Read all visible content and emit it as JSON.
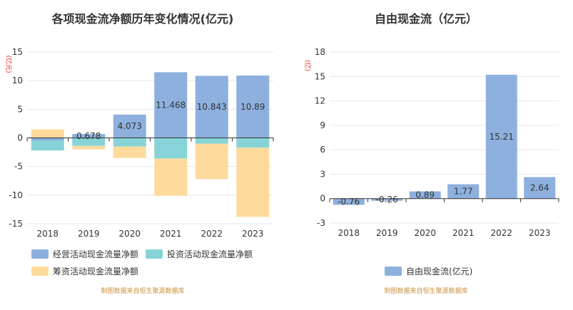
{
  "colors": {
    "operating": "#8eb0de",
    "investing": "#86d4d8",
    "financing": "#fedb9c",
    "free_cf": "#8eb0de",
    "source_text": "#c9913a",
    "unit_text": "#e8261f"
  },
  "chart_data": [
    {
      "type": "bar",
      "title": "各项现金流净额历年变化情况(亿元)",
      "ylabel": "(亿元)",
      "ylim": [
        -15,
        15
      ],
      "yticks": [
        15,
        10,
        5,
        0,
        -5,
        -10,
        -15
      ],
      "categories": [
        "2018",
        "2019",
        "2020",
        "2021",
        "2022",
        "2023"
      ],
      "stacked": true,
      "grid": true,
      "legend_position": "bottom",
      "series": [
        {
          "name": "经营活动现金流量净额",
          "color_key": "operating",
          "values": [
            -0.5,
            0.678,
            4.073,
            11.468,
            10.843,
            10.89
          ],
          "labels": [
            "",
            "0.678",
            "4.073",
            "11.468",
            "10.843",
            "10.89"
          ]
        },
        {
          "name": "投资活动现金流量净额",
          "color_key": "investing",
          "values": [
            -1.7,
            -1.4,
            -1.5,
            -3.6,
            -1.0,
            -1.7
          ]
        },
        {
          "name": "筹资活动现金流量净额",
          "color_key": "financing",
          "values": [
            1.5,
            -0.6,
            -2.0,
            -6.5,
            -6.2,
            -12.1
          ]
        }
      ],
      "source": "制图数据来自恒生聚源数据库"
    },
    {
      "type": "bar",
      "title": "自由现金流（亿元）",
      "ylabel": "(亿)",
      "ylim": [
        -3,
        18
      ],
      "yticks": [
        18,
        15,
        12,
        9,
        6,
        3,
        0,
        -3
      ],
      "categories": [
        "2018",
        "2019",
        "2020",
        "2021",
        "2022",
        "2023"
      ],
      "grid": true,
      "legend_position": "bottom",
      "series": [
        {
          "name": "自由现金流(亿元)",
          "color_key": "free_cf",
          "values": [
            -0.76,
            -0.26,
            0.89,
            1.77,
            15.21,
            2.64
          ],
          "labels": [
            "-0.76",
            "-0.26",
            "0.89",
            "1.77",
            "15.21",
            "2.64"
          ]
        }
      ],
      "source": "制图数据来自恒生聚源数据库"
    }
  ]
}
